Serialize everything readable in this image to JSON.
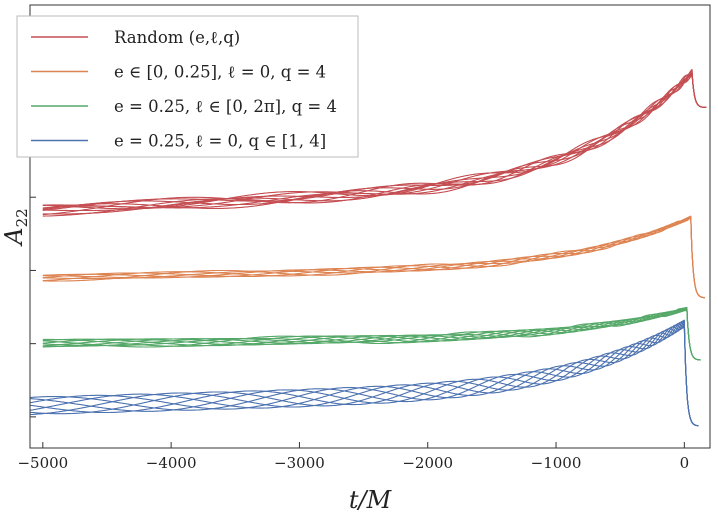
{
  "chart_data": {
    "type": "line",
    "title": "",
    "xlabel": "t/M",
    "ylabel": "A22",
    "xlim": [
      -5100,
      200
    ],
    "xticks": [
      -5000,
      -4000,
      -3000,
      -2000,
      -1000,
      0
    ],
    "xtick_labels": [
      "−5000",
      "−4000",
      "−3000",
      "−2000",
      "−1000",
      "0"
    ],
    "ytick_labels_shown": false,
    "legend_position": "top-left",
    "series": [
      {
        "name": "Random (e, ℓ, q)",
        "legend": "Random (e,ℓ,q)",
        "color": "#c44e52",
        "baseline": 0.18,
        "peak": 0.93,
        "t_start": -5000,
        "t_merger": 60,
        "n_curves": 10,
        "osc_amp": 0.03,
        "post_level": 0.74
      },
      {
        "name": "e ∈ [0,0.25], ℓ = 0, q = 4",
        "legend": "e ∈ [0, 0.25], ℓ = 0, q = 4",
        "color": "#dd8452",
        "baseline": -0.19,
        "peak": 0.14,
        "t_start": -5000,
        "t_merger": 50,
        "n_curves": 6,
        "osc_amp": 0.02,
        "post_level": -0.3
      },
      {
        "name": "e = 0.25, ℓ ∈ [0,2π], q = 4",
        "legend": "e = 0.25, ℓ ∈ [0, 2π], q = 4",
        "color": "#55a868",
        "baseline": -0.55,
        "peak": -0.36,
        "t_start": -5000,
        "t_merger": 20,
        "n_curves": 8,
        "osc_amp": 0.025,
        "post_level": -0.64
      },
      {
        "name": "e = 0.25, ℓ = 0, q ∈ [1,4]",
        "legend": "e = 0.25, ℓ = 0, q ∈ [1, 4]",
        "color": "#4c72b0",
        "baseline": -0.89,
        "peak": -0.44,
        "t_start": -5100,
        "t_merger": 0,
        "n_curves": 7,
        "osc_amp": 0.08,
        "post_level": -1.0
      }
    ]
  }
}
